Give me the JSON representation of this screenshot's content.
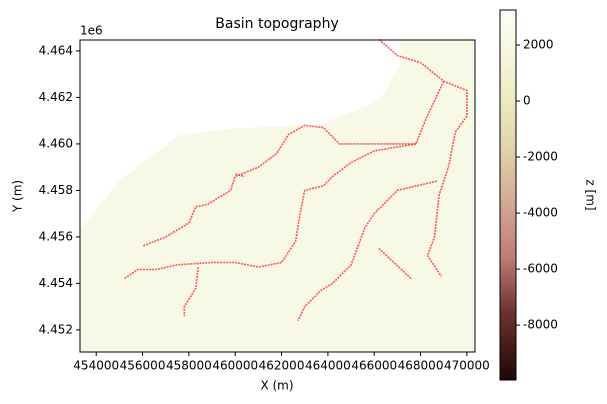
{
  "chart_data": {
    "type": "image",
    "title": "Basin topography",
    "x_label": "X (m)",
    "y_label": "Y (m)",
    "y_offset_label": "1e6",
    "xlim": [
      453300,
      470350
    ],
    "ylim": [
      4451050,
      4464470
    ],
    "xticks": [
      454000,
      456000,
      458000,
      460000,
      462000,
      464000,
      466000,
      468000,
      470000
    ],
    "yticks": [
      {
        "value": 4452000,
        "label": "4.452"
      },
      {
        "value": 4454000,
        "label": "4.454"
      },
      {
        "value": 4456000,
        "label": "4.456"
      },
      {
        "value": 4458000,
        "label": "4.458"
      },
      {
        "value": 4460000,
        "label": "4.460"
      },
      {
        "value": 4462000,
        "label": "4.462"
      },
      {
        "value": 4464000,
        "label": "4.464"
      }
    ],
    "field_color": "#f8f8e6",
    "channel_color": "#ff2020",
    "channels": [
      {
        "x": [
          466200,
          467000,
          468000,
          469000,
          470000,
          470000,
          469500,
          469200,
          468800,
          468600,
          468300,
          468900
        ],
        "y": [
          4464500,
          4463800,
          4463500,
          4462700,
          4462300,
          4461200,
          4460500,
          4459000,
          4457800,
          4456000,
          4455200,
          4454300
        ]
      },
      {
        "x": [
          469000,
          468200,
          467800,
          464500,
          463800,
          463000,
          462300,
          461800,
          461000,
          460000,
          459800,
          458800,
          458300,
          458000,
          457000,
          456000
        ],
        "y": [
          4462700,
          4461000,
          4460000,
          4460000,
          4460700,
          4460800,
          4460400,
          4459600,
          4459000,
          4458600,
          4458000,
          4457400,
          4457300,
          4456600,
          4456000,
          4455600
        ]
      },
      {
        "x": [
          467800,
          466000,
          465000,
          464200,
          463800,
          463000,
          462800,
          462600,
          462000,
          461000,
          460000,
          459000,
          457500,
          456600,
          455800,
          455200
        ],
        "y": [
          4460000,
          4459700,
          4459200,
          4458600,
          4458200,
          4458000,
          4457000,
          4455800,
          4454900,
          4454700,
          4454900,
          4454900,
          4454800,
          4454600,
          4454600,
          4454200
        ]
      },
      {
        "x": [
          458400,
          458300,
          457800,
          457800
        ],
        "y": [
          4454700,
          4453800,
          4453000,
          4452600
        ]
      },
      {
        "x": [
          468700,
          467000,
          466000,
          465600,
          465000,
          464200,
          463700,
          463000,
          462700
        ],
        "y": [
          4458400,
          4458000,
          4457000,
          4456400,
          4454800,
          4454000,
          4453700,
          4453000,
          4452400
        ]
      },
      {
        "x": [
          466200,
          467600
        ],
        "y": [
          4455500,
          4454200
        ]
      },
      {
        "x": [
          460000,
          460400
        ],
        "y": [
          4458700,
          4458600
        ]
      }
    ],
    "colorbar": {
      "label": "z [m]",
      "lim": [
        -9960,
        3250
      ],
      "ticks": [
        2000,
        0,
        -2000,
        -4000,
        -6000,
        -8000
      ],
      "colormap": [
        [
          -9960,
          "#1e0604"
        ],
        [
          -7500,
          "#6e3430"
        ],
        [
          -5500,
          "#c07f7a"
        ],
        [
          -3500,
          "#d6ab98"
        ],
        [
          -1500,
          "#e2d6ac"
        ],
        [
          0,
          "#ecebbd"
        ],
        [
          1500,
          "#f5f5dc"
        ],
        [
          3250,
          "#fdfdf8"
        ]
      ]
    }
  }
}
